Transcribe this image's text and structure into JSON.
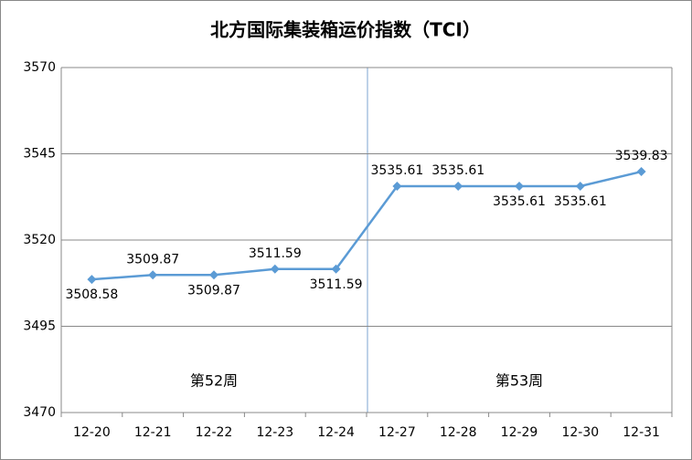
{
  "chart_data": {
    "type": "line",
    "title": "北方国际集装箱运价指数（TCI）",
    "categories": [
      "12-20",
      "12-21",
      "12-22",
      "12-23",
      "12-24",
      "12-27",
      "12-28",
      "12-29",
      "12-30",
      "12-31"
    ],
    "values": [
      3508.58,
      3509.87,
      3509.87,
      3511.59,
      3511.59,
      3535.61,
      3535.61,
      3535.61,
      3535.61,
      3539.83
    ],
    "color": "#5b9bd5",
    "ylim": [
      3470,
      3570
    ],
    "yticks": [
      3470,
      3495,
      3520,
      3545,
      3570
    ],
    "grid": true,
    "annotations": [
      "第52周",
      "第53周"
    ]
  }
}
